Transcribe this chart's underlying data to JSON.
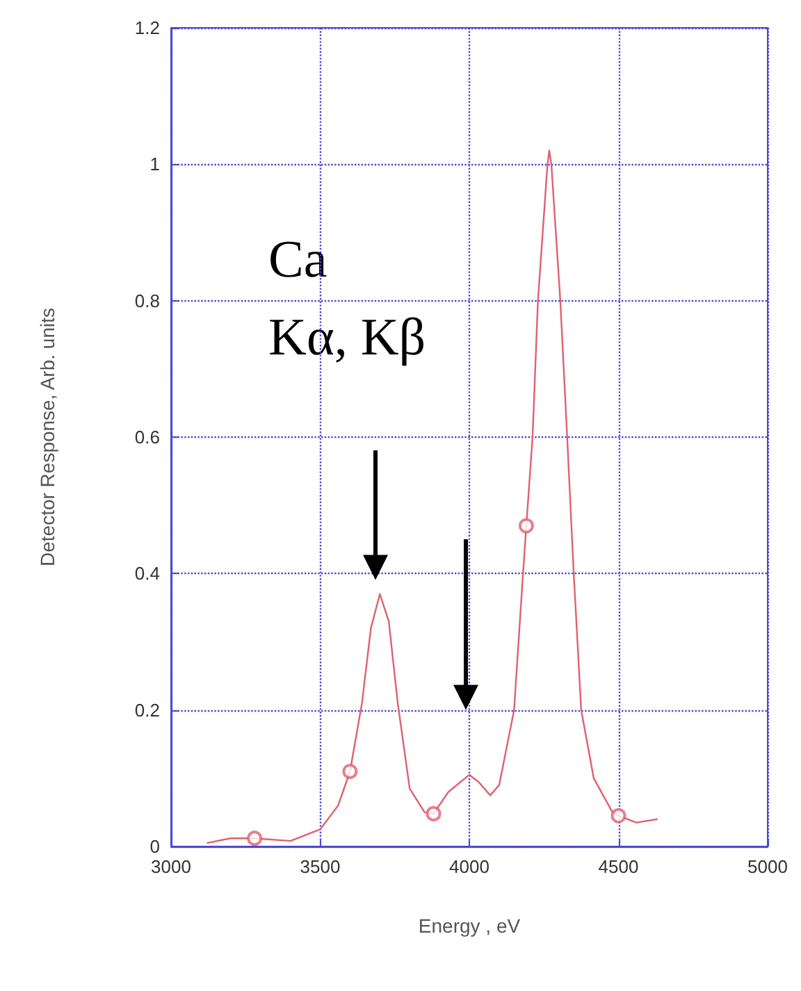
{
  "chart_data": {
    "type": "line",
    "xlabel": "Energy , eV",
    "ylabel": "Detector Response, Arb. units",
    "xlim": [
      3000,
      5000
    ],
    "xticks": [
      3000,
      3500,
      4000,
      4500,
      5000
    ],
    "ylim": [
      0,
      1.2
    ],
    "yticks": [
      0,
      0.2,
      0.4,
      0.6,
      0.8,
      1,
      1.2
    ],
    "grid": true,
    "line_style": "solid",
    "annotations": [
      "Ca",
      "Kα, Kβ"
    ],
    "series": [
      {
        "color": "#e06070",
        "marker": "none",
        "x": [
          3120,
          3200,
          3280,
          3400,
          3500,
          3560,
          3600,
          3640,
          3670,
          3700,
          3730,
          3760,
          3800,
          3850,
          3880,
          3930,
          4000,
          4030,
          4070,
          4100,
          4150,
          4180,
          4191,
          4212,
          4230,
          4262,
          4268,
          4275,
          4305,
          4328,
          4350,
          4375,
          4417,
          4480,
          4500,
          4560,
          4631
        ],
        "values": [
          0.005,
          0.012,
          0.012,
          0.008,
          0.025,
          0.06,
          0.11,
          0.21,
          0.32,
          0.37,
          0.33,
          0.21,
          0.085,
          0.05,
          0.048,
          0.08,
          0.105,
          0.095,
          0.075,
          0.09,
          0.2,
          0.4,
          0.47,
          0.6,
          0.8,
          1.0,
          1.02,
          1.0,
          0.8,
          0.6,
          0.4,
          0.2,
          0.1,
          0.05,
          0.045,
          0.035,
          0.04
        ]
      },
      {
        "type": "scatter",
        "color": "#e06070",
        "marker": "circle",
        "x": [
          3280,
          3600,
          3880,
          4191,
          4500
        ],
        "values": [
          0.012,
          0.11,
          0.048,
          0.47,
          0.045
        ]
      }
    ]
  }
}
